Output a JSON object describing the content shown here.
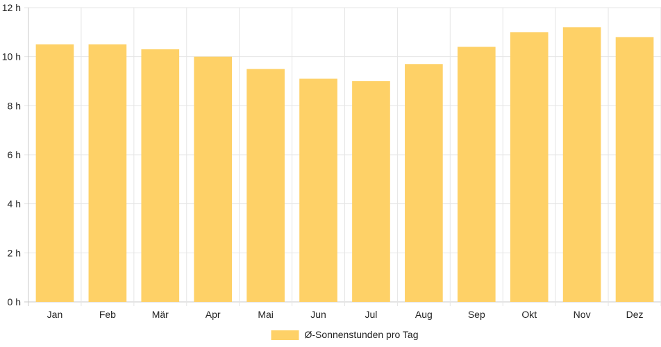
{
  "chart_data": {
    "type": "bar",
    "categories": [
      "Jan",
      "Feb",
      "Mär",
      "Apr",
      "Mai",
      "Jun",
      "Jul",
      "Aug",
      "Sep",
      "Okt",
      "Nov",
      "Dez"
    ],
    "series": [
      {
        "name": "Ø-Sonnenstunden pro Tag",
        "values": [
          10.5,
          10.5,
          10.3,
          10.0,
          9.5,
          9.1,
          9.0,
          9.7,
          10.4,
          11.0,
          11.2,
          10.8
        ],
        "color": "#fed167"
      }
    ],
    "ylim": [
      0,
      12
    ],
    "yticks": [
      0,
      2,
      4,
      6,
      8,
      10,
      12
    ],
    "y_tick_suffix": " h",
    "grid": true,
    "grid_color": "#e5e5e5",
    "axis_color": "#c8c8c8",
    "legend_position": "bottom-center"
  }
}
